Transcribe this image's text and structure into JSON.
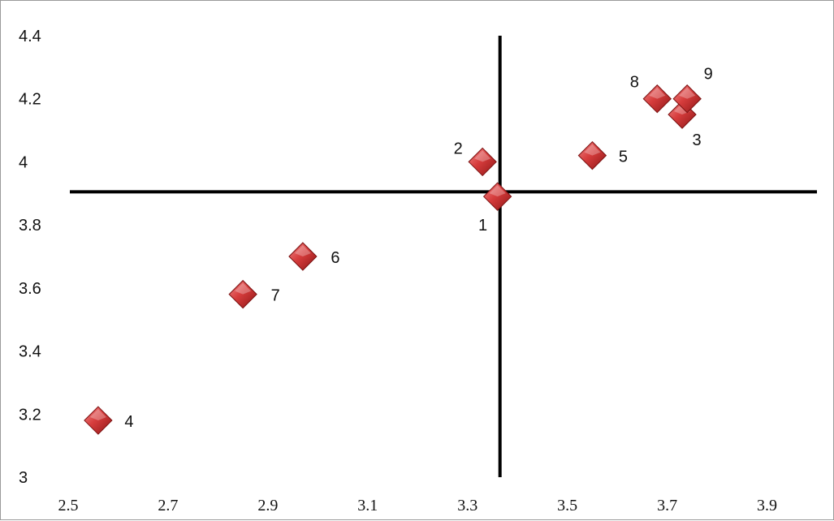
{
  "chart_data": {
    "type": "scatter",
    "title": "",
    "xlabel": "",
    "ylabel": "",
    "xlim": [
      2.5,
      4.0
    ],
    "ylim": [
      3.0,
      4.4
    ],
    "xticks": [
      "2.5",
      "2.7",
      "2.9",
      "3.1",
      "3.3",
      "3.5",
      "3.7",
      "3.9"
    ],
    "yticks": [
      "3",
      "3.2",
      "3.4",
      "3.6",
      "3.8",
      "4",
      "4.2",
      "4.4"
    ],
    "grid": false,
    "legend": "none",
    "marker": "diamond",
    "marker_color": "#d03a3a",
    "reference_lines": {
      "x": 3.365,
      "y": 3.905
    },
    "points": [
      {
        "label": "1",
        "x": 3.36,
        "y": 3.89
      },
      {
        "label": "2",
        "x": 3.33,
        "y": 4.0
      },
      {
        "label": "3",
        "x": 3.73,
        "y": 4.15
      },
      {
        "label": "4",
        "x": 2.56,
        "y": 3.18
      },
      {
        "label": "5",
        "x": 3.55,
        "y": 4.02
      },
      {
        "label": "6",
        "x": 2.97,
        "y": 3.7
      },
      {
        "label": "7",
        "x": 2.85,
        "y": 3.58
      },
      {
        "label": "8",
        "x": 3.68,
        "y": 4.2
      },
      {
        "label": "9",
        "x": 3.74,
        "y": 4.2
      }
    ]
  }
}
